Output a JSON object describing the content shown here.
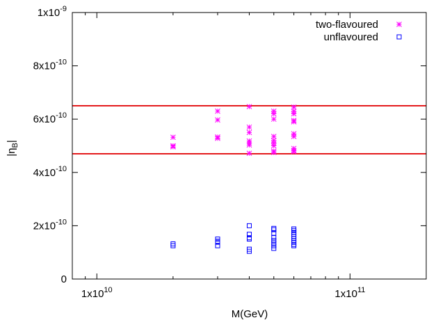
{
  "chart_data": {
    "type": "scatter",
    "xlabel": "M(GeV)",
    "ylabel": "|η_B|",
    "xscale": "log",
    "xlim": [
      8000000000.0,
      200000000000.0
    ],
    "ylim": [
      0,
      1e-09
    ],
    "x_ticks": [
      {
        "value": 10000000000.0,
        "base": "1x10",
        "exp": "10"
      },
      {
        "value": 100000000000.0,
        "base": "1x10",
        "exp": "11"
      }
    ],
    "y_ticks": [
      {
        "value": 0,
        "base": "0",
        "exp": ""
      },
      {
        "value": 2e-10,
        "base": "2x10",
        "exp": "-10"
      },
      {
        "value": 4e-10,
        "base": "4x10",
        "exp": "-10"
      },
      {
        "value": 6e-10,
        "base": "6x10",
        "exp": "-10"
      },
      {
        "value": 8e-10,
        "base": "8x10",
        "exp": "-10"
      },
      {
        "value": 1e-09,
        "base": "1x10",
        "exp": "-9"
      }
    ],
    "legend_position": "top-right",
    "grid": false,
    "hlines": [
      {
        "y": 6.5e-10,
        "color": "#e41a1c"
      },
      {
        "y": 4.7e-10,
        "color": "#e41a1c"
      }
    ],
    "series": [
      {
        "name": "two-flavoured",
        "marker": "star",
        "color": "#ff00ff",
        "points": [
          [
            20000000000.0,
            5.32e-10
          ],
          [
            20000000000.0,
            5e-10
          ],
          [
            20000000000.0,
            4.96e-10
          ],
          [
            30000000000.0,
            6.3e-10
          ],
          [
            30000000000.0,
            5.97e-10
          ],
          [
            30000000000.0,
            5.33e-10
          ],
          [
            30000000000.0,
            5.28e-10
          ],
          [
            40000000000.0,
            6.47e-10
          ],
          [
            40000000000.0,
            5.7e-10
          ],
          [
            40000000000.0,
            5.5e-10
          ],
          [
            40000000000.0,
            5.18e-10
          ],
          [
            40000000000.0,
            5.1e-10
          ],
          [
            40000000000.0,
            5.03e-10
          ],
          [
            40000000000.0,
            4.72e-10
          ],
          [
            50000000000.0,
            6.3e-10
          ],
          [
            50000000000.0,
            6.2e-10
          ],
          [
            50000000000.0,
            6e-10
          ],
          [
            50000000000.0,
            5.35e-10
          ],
          [
            50000000000.0,
            5.2e-10
          ],
          [
            50000000000.0,
            5.1e-10
          ],
          [
            50000000000.0,
            5e-10
          ],
          [
            50000000000.0,
            4.8e-10
          ],
          [
            50000000000.0,
            4.75e-10
          ],
          [
            60000000000.0,
            6.45e-10
          ],
          [
            60000000000.0,
            6.3e-10
          ],
          [
            60000000000.0,
            6.2e-10
          ],
          [
            60000000000.0,
            5.95e-10
          ],
          [
            60000000000.0,
            5.9e-10
          ],
          [
            60000000000.0,
            5.45e-10
          ],
          [
            60000000000.0,
            5.35e-10
          ],
          [
            60000000000.0,
            4.9e-10
          ],
          [
            60000000000.0,
            4.82e-10
          ],
          [
            60000000000.0,
            4.78e-10
          ]
        ]
      },
      {
        "name": "unflavoured",
        "marker": "square",
        "color": "#0000ff",
        "points": [
          [
            20000000000.0,
            1.32e-10
          ],
          [
            20000000000.0,
            1.25e-10
          ],
          [
            30000000000.0,
            1.5e-10
          ],
          [
            30000000000.0,
            1.42e-10
          ],
          [
            30000000000.0,
            1.38e-10
          ],
          [
            30000000000.0,
            1.25e-10
          ],
          [
            40000000000.0,
            2e-10
          ],
          [
            40000000000.0,
            1.68e-10
          ],
          [
            40000000000.0,
            1.55e-10
          ],
          [
            40000000000.0,
            1.5e-10
          ],
          [
            40000000000.0,
            1.12e-10
          ],
          [
            40000000000.0,
            1.04e-10
          ],
          [
            50000000000.0,
            1.9e-10
          ],
          [
            50000000000.0,
            1.85e-10
          ],
          [
            50000000000.0,
            1.72e-10
          ],
          [
            50000000000.0,
            1.55e-10
          ],
          [
            50000000000.0,
            1.45e-10
          ],
          [
            50000000000.0,
            1.35e-10
          ],
          [
            50000000000.0,
            1.25e-10
          ],
          [
            50000000000.0,
            1.15e-10
          ],
          [
            60000000000.0,
            1.88e-10
          ],
          [
            60000000000.0,
            1.82e-10
          ],
          [
            60000000000.0,
            1.75e-10
          ],
          [
            60000000000.0,
            1.68e-10
          ],
          [
            60000000000.0,
            1.6e-10
          ],
          [
            60000000000.0,
            1.52e-10
          ],
          [
            60000000000.0,
            1.45e-10
          ],
          [
            60000000000.0,
            1.38e-10
          ],
          [
            60000000000.0,
            1.3e-10
          ],
          [
            60000000000.0,
            1.25e-10
          ]
        ]
      }
    ]
  }
}
